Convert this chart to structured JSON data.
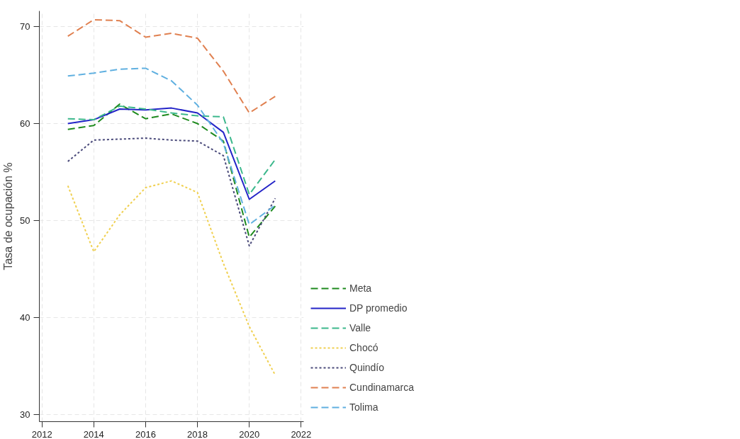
{
  "chart_data": {
    "type": "line",
    "ylabel": "Tasa de ocupación %",
    "x": [
      2013,
      2014,
      2015,
      2016,
      2017,
      2018,
      2019,
      2020,
      2021
    ],
    "xlim": [
      2011.9,
      2022.1
    ],
    "xticks": [
      2012,
      2014,
      2016,
      2018,
      2020,
      2022
    ],
    "ylim": [
      29.3,
      71.6
    ],
    "yticks": [
      30,
      40,
      50,
      60,
      70
    ],
    "grid": true,
    "legend": "right",
    "marker": "none",
    "series": [
      {
        "name": "Meta",
        "color": "#1e8a1e",
        "line_style": "dashed",
        "values": [
          59.4,
          59.8,
          62.0,
          60.5,
          61.0,
          60.0,
          58.2,
          48.3,
          51.5
        ]
      },
      {
        "name": "DP promedio",
        "color": "#2424c8",
        "line_style": "solid",
        "values": [
          60.0,
          60.4,
          61.5,
          61.4,
          61.6,
          61.1,
          59.1,
          52.2,
          54.1
        ]
      },
      {
        "name": "Valle",
        "color": "#3cb88c",
        "line_style": "dashed",
        "values": [
          60.5,
          60.4,
          61.8,
          61.5,
          61.1,
          60.8,
          60.7,
          52.7,
          56.3
        ]
      },
      {
        "name": "Chocó",
        "color": "#f0d050",
        "line_style": "dotted",
        "values": [
          53.6,
          46.8,
          50.6,
          53.4,
          54.1,
          52.9,
          45.6,
          39.1,
          34.1
        ]
      },
      {
        "name": "Quindío",
        "color": "#4a4a7a",
        "line_style": "dotted",
        "values": [
          56.1,
          58.3,
          58.4,
          58.5,
          58.3,
          58.2,
          56.7,
          47.4,
          52.3
        ]
      },
      {
        "name": "Cundinamarca",
        "color": "#e08050",
        "line_style": "dashed",
        "values": [
          69.0,
          70.7,
          70.6,
          68.9,
          69.3,
          68.8,
          65.4,
          61.1,
          62.8
        ]
      },
      {
        "name": "Tolima",
        "color": "#60b0e0",
        "line_style": "dashed",
        "values": [
          64.9,
          65.2,
          65.6,
          65.7,
          64.4,
          61.9,
          58.0,
          49.6,
          51.6
        ]
      }
    ]
  }
}
